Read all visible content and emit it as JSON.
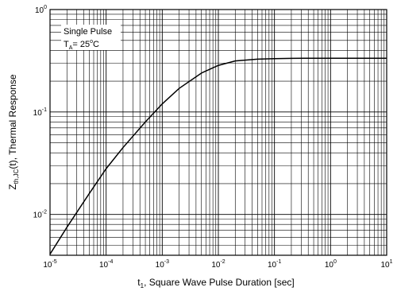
{
  "chart_data": {
    "type": "line",
    "title": "",
    "x_scale": "log",
    "y_scale": "log",
    "xlim": [
      1e-05,
      10
    ],
    "ylim": [
      0.004,
      1
    ],
    "grid": true,
    "legend": "none",
    "line_color": "#000000",
    "grid_color": "#000000",
    "x_ticks": [
      {
        "base": "10",
        "exp": "-5",
        "value": 1e-05
      },
      {
        "base": "10",
        "exp": "-4",
        "value": 0.0001
      },
      {
        "base": "10",
        "exp": "-3",
        "value": 0.001
      },
      {
        "base": "10",
        "exp": "-2",
        "value": 0.01
      },
      {
        "base": "10",
        "exp": "-1",
        "value": 0.1
      },
      {
        "base": "10",
        "exp": "0",
        "value": 1
      },
      {
        "base": "10",
        "exp": "1",
        "value": 10
      }
    ],
    "y_ticks": [
      {
        "base": "10",
        "exp": "0",
        "value": 1
      },
      {
        "base": "10",
        "exp": "-1",
        "value": 0.1
      },
      {
        "base": "10",
        "exp": "-2",
        "value": 0.01
      }
    ],
    "xlabel": {
      "pre": "t",
      "sub": "1",
      "post": ", Square Wave Pulse Duration [sec]"
    },
    "ylabel": {
      "pre": "Z",
      "sub": "th,JC",
      "post": "(t), Thermal Response"
    },
    "annotation": {
      "line1": "Single Pulse",
      "line2_pre": "T",
      "line2_sub": "A",
      "line2_post": "= 25",
      "line2_deg": "o",
      "line2_unit": "C"
    },
    "series": [
      {
        "x": [
          1e-05,
          2e-05,
          5e-05,
          0.0001,
          0.0002,
          0.0005,
          0.001,
          0.002,
          0.005,
          0.01,
          0.02,
          0.05,
          0.1,
          0.2,
          0.5,
          1,
          2,
          5,
          10
        ],
        "y": [
          0.0041,
          0.0075,
          0.016,
          0.028,
          0.045,
          0.08,
          0.12,
          0.17,
          0.24,
          0.285,
          0.315,
          0.328,
          0.332,
          0.334,
          0.335,
          0.335,
          0.335,
          0.335,
          0.335
        ]
      }
    ]
  }
}
